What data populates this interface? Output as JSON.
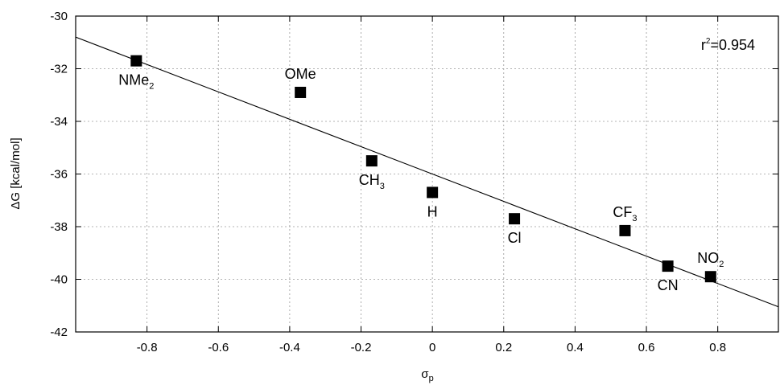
{
  "chart_data": {
    "type": "scatter",
    "title": "",
    "xlabel": {
      "main": "σ",
      "sub": "p"
    },
    "ylabel": "ΔG [kcal/mol]",
    "xlim": [
      -1.0,
      0.97
    ],
    "ylim": [
      -42,
      -30
    ],
    "xticks": [
      -0.8,
      -0.6,
      -0.4,
      -0.2,
      0,
      0.2,
      0.4,
      0.6,
      0.8
    ],
    "xtick_labels": [
      "-0.8",
      "-0.6",
      "-0.4",
      "-0.2",
      "0",
      "0.2",
      "0.4",
      "0.6",
      "0.8"
    ],
    "yticks": [
      -42,
      -40,
      -38,
      -36,
      -34,
      -32,
      -30
    ],
    "ytick_labels": [
      "-42",
      "-40",
      "-38",
      "-36",
      "-34",
      "-32",
      "-30"
    ],
    "grid": true,
    "annotation": {
      "main": "r",
      "sup": "2",
      "rest": "=0.954"
    },
    "points": [
      {
        "name": "NMe2",
        "label_main": "NMe",
        "label_sub": "2",
        "x": -0.83,
        "y": -31.7,
        "label_anchor": "below"
      },
      {
        "name": "OMe",
        "label_main": "OMe",
        "label_sub": "",
        "x": -0.37,
        "y": -32.9,
        "label_anchor": "above"
      },
      {
        "name": "CH3",
        "label_main": "CH",
        "label_sub": "3",
        "x": -0.17,
        "y": -35.5,
        "label_anchor": "below"
      },
      {
        "name": "H",
        "label_main": "H",
        "label_sub": "",
        "x": 0.0,
        "y": -36.7,
        "label_anchor": "below"
      },
      {
        "name": "Cl",
        "label_main": "Cl",
        "label_sub": "",
        "x": 0.23,
        "y": -37.7,
        "label_anchor": "below"
      },
      {
        "name": "CF3",
        "label_main": "CF",
        "label_sub": "3",
        "x": 0.54,
        "y": -38.15,
        "label_anchor": "above"
      },
      {
        "name": "CN",
        "label_main": "CN",
        "label_sub": "",
        "x": 0.66,
        "y": -39.5,
        "label_anchor": "below"
      },
      {
        "name": "NO2",
        "label_main": "NO",
        "label_sub": "2",
        "x": 0.78,
        "y": -39.9,
        "label_anchor": "above"
      }
    ],
    "fit_line": {
      "slope": -5.2,
      "intercept": -36.0
    }
  }
}
